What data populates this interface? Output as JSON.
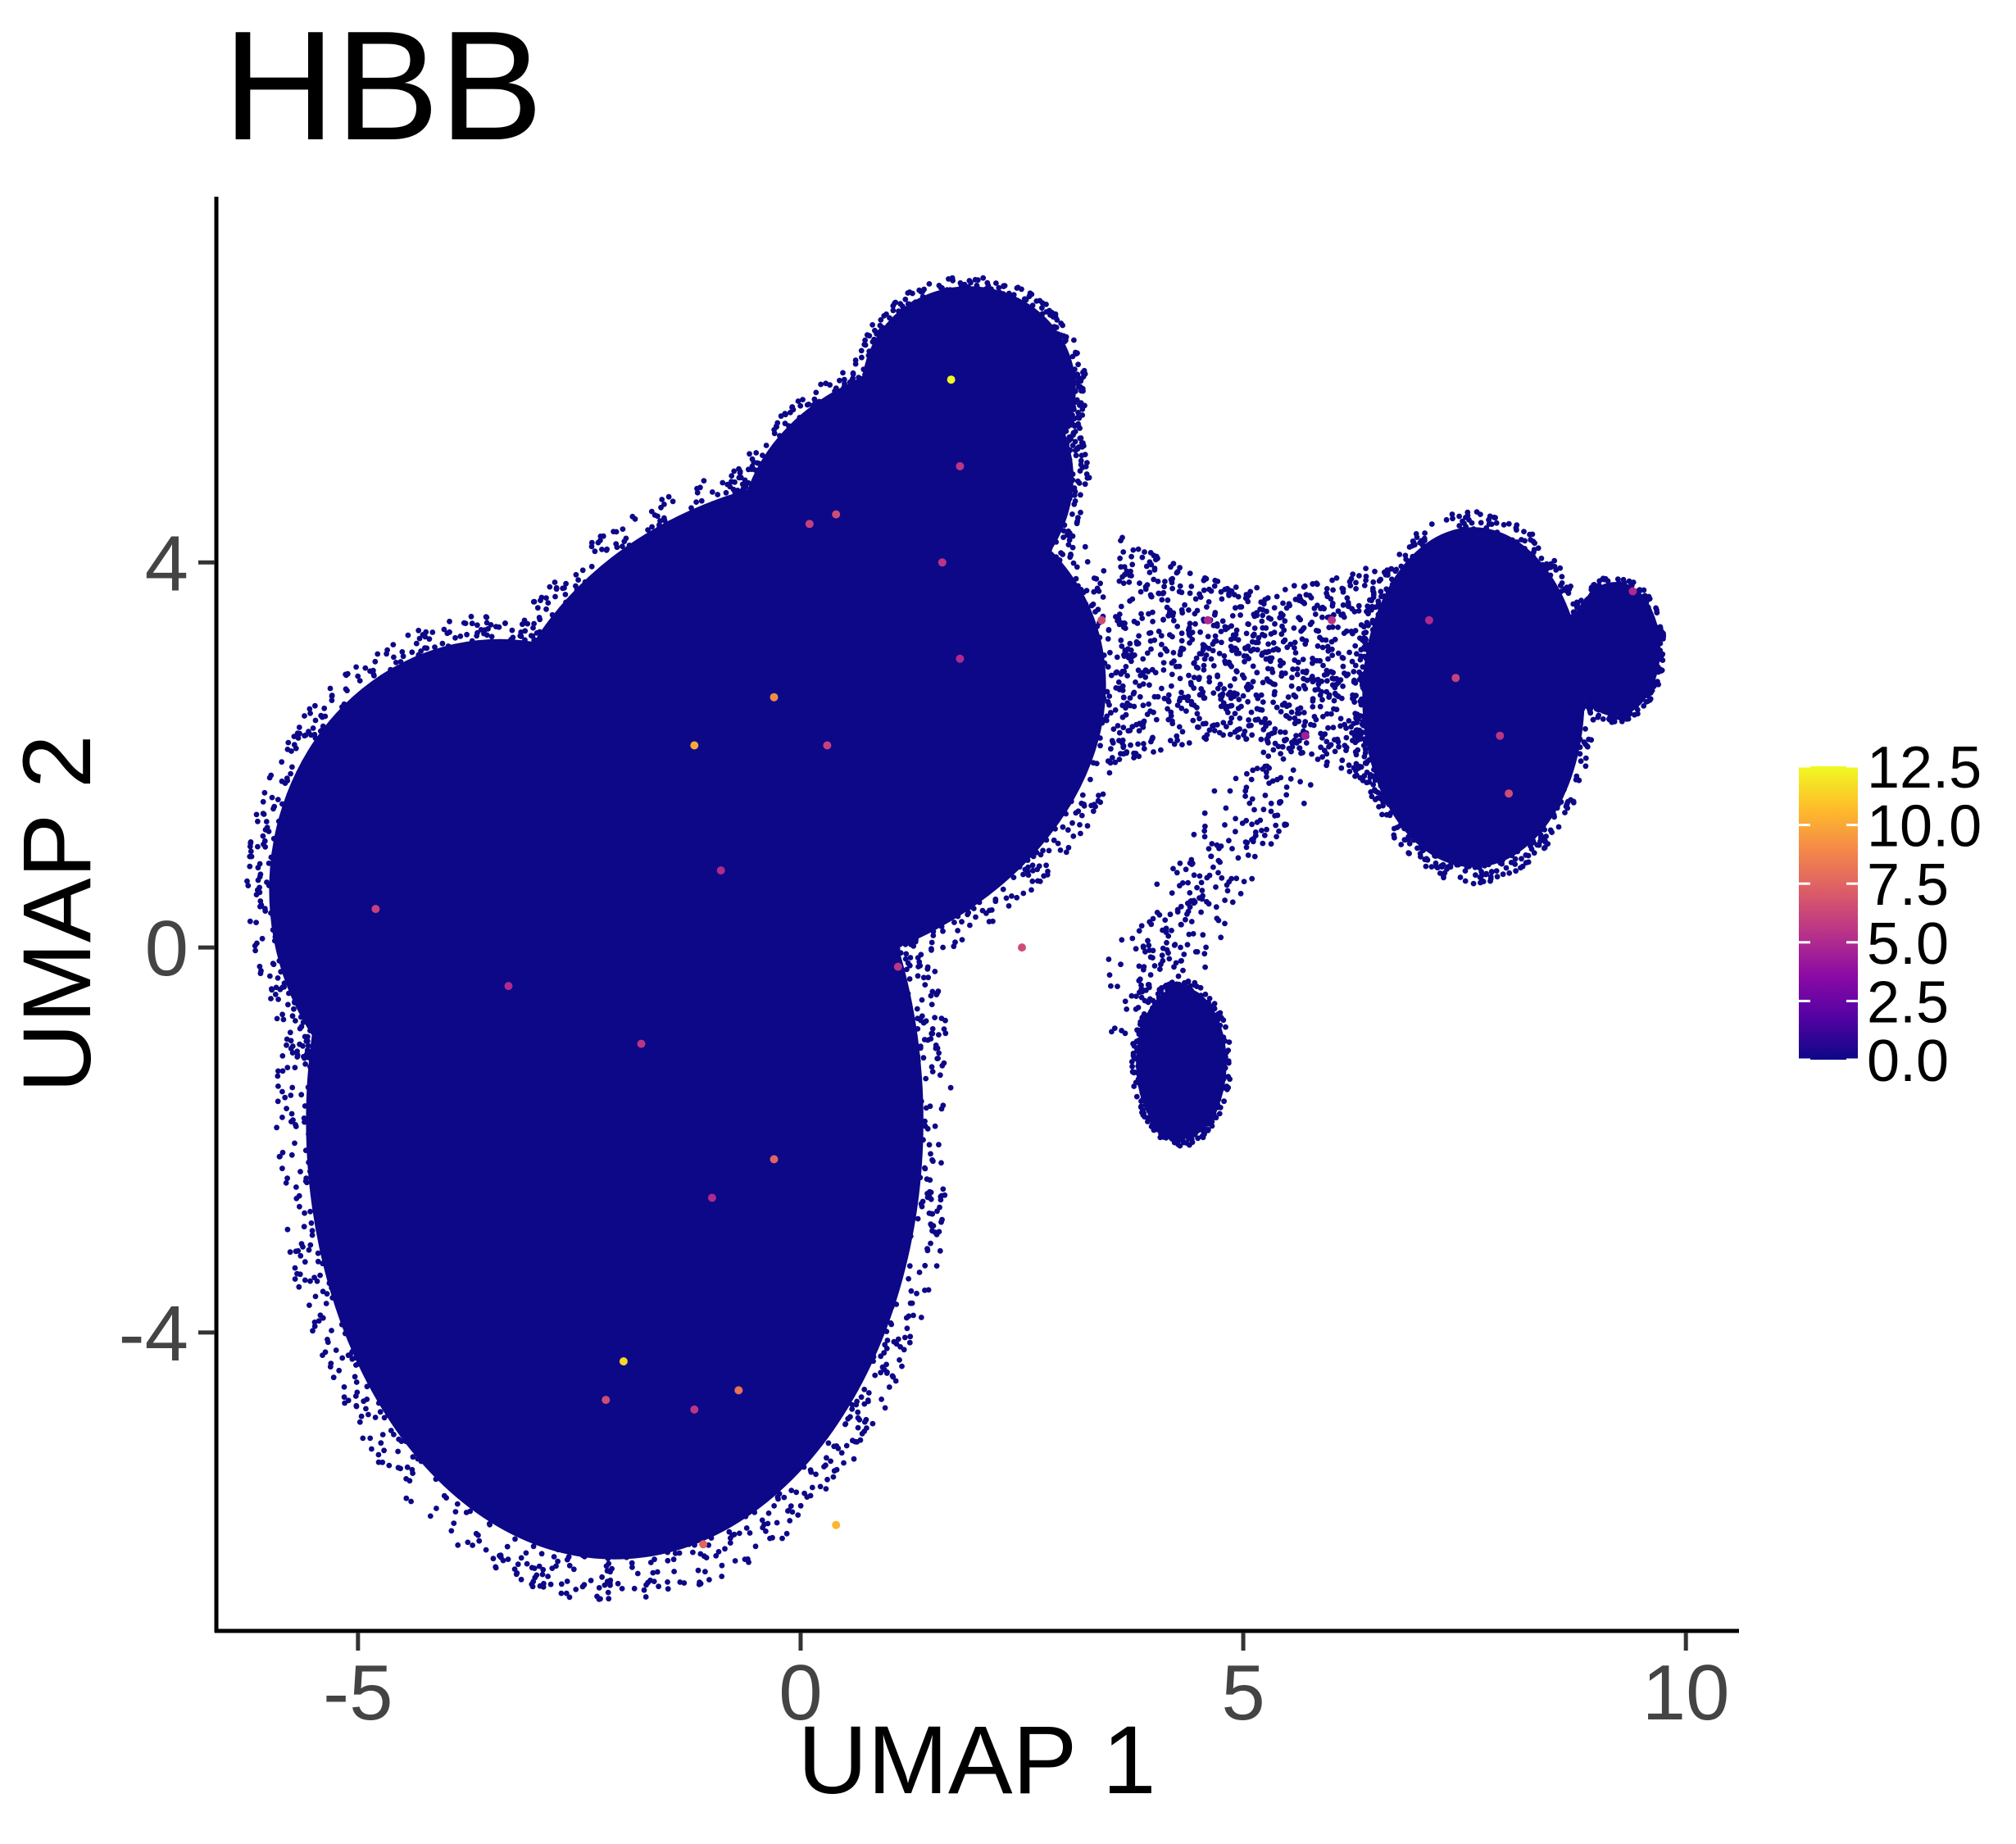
{
  "chart_data": {
    "type": "scatter",
    "title": "HBB",
    "xlabel": "UMAP 1",
    "ylabel": "UMAP 2",
    "xlim": [
      -6.6,
      10.6
    ],
    "ylim": [
      -7.1,
      7.8
    ],
    "x_ticks": [
      -5,
      0,
      5,
      10
    ],
    "x_tick_labels": [
      "-5",
      "0",
      "5",
      "10"
    ],
    "y_ticks": [
      -4,
      0,
      4
    ],
    "y_tick_labels": [
      "-4",
      "0",
      "4"
    ],
    "grid": false,
    "legend": {
      "placement": "right",
      "kind": "colorbar",
      "min": 0.0,
      "max": 12.5,
      "ticks": [
        0.0,
        2.5,
        5.0,
        7.5,
        10.0,
        12.5
      ],
      "tick_labels": [
        "0.0",
        "2.5",
        "5.0",
        "7.5",
        "10.0",
        "12.5"
      ],
      "gradient": [
        "#0d0887",
        "#5302a3",
        "#8b0aa5",
        "#b83289",
        "#db5c68",
        "#f48849",
        "#febd2a",
        "#f0f921"
      ]
    },
    "point_color_low": "#0d0887",
    "clusters": [
      {
        "name": "main-lower",
        "shape": "ellipse",
        "cx": -2.1,
        "cy": -1.8,
        "rx": 3.75,
        "ry": 4.9,
        "rotation_deg": 0
      },
      {
        "name": "main-left",
        "shape": "ellipse",
        "cx": -3.4,
        "cy": 0.6,
        "rx": 2.8,
        "ry": 2.8,
        "rotation_deg": 0
      },
      {
        "name": "main-upper",
        "shape": "ellipse",
        "cx": 0.0,
        "cy": 2.3,
        "rx": 3.8,
        "ry": 2.7,
        "rotation_deg": 20
      },
      {
        "name": "top-lobe",
        "shape": "ellipse",
        "cx": 1.9,
        "cy": 5.8,
        "rx": 1.3,
        "ry": 1.15,
        "rotation_deg": 0
      },
      {
        "name": "upper-neck",
        "shape": "ellipse",
        "cx": 1.2,
        "cy": 4.6,
        "rx": 2.1,
        "ry": 1.5,
        "rotation_deg": 25
      },
      {
        "name": "right-cluster",
        "shape": "ellipse",
        "cx": 7.6,
        "cy": 2.6,
        "rx": 1.35,
        "ry": 1.9,
        "rotation_deg": 0
      },
      {
        "name": "right-tip",
        "shape": "ellipse",
        "cx": 9.2,
        "cy": 3.1,
        "rx": 0.55,
        "ry": 0.75,
        "rotation_deg": 0
      },
      {
        "name": "small-cluster",
        "shape": "ellipse",
        "cx": 4.3,
        "cy": -1.2,
        "rx": 0.55,
        "ry": 0.85,
        "rotation_deg": 0
      },
      {
        "name": "bridge",
        "shape": "scatter-band",
        "x_range": [
          3.6,
          6.5
        ],
        "y_range": [
          1.8,
          4.4
        ]
      }
    ],
    "highlighted_points": [
      {
        "x": 1.7,
        "y": 5.9,
        "value": 12.5
      },
      {
        "x": -1.2,
        "y": 2.1,
        "value": 10.0
      },
      {
        "x": -0.3,
        "y": 2.6,
        "value": 9.0
      },
      {
        "x": -2.0,
        "y": -4.3,
        "value": 11.5
      },
      {
        "x": 0.4,
        "y": -6.0,
        "value": 10.5
      },
      {
        "x": 0.4,
        "y": 4.5,
        "value": 6.5
      },
      {
        "x": 1.8,
        "y": 5.0,
        "value": 5.5
      },
      {
        "x": 0.1,
        "y": 4.4,
        "value": 6.0
      },
      {
        "x": 1.6,
        "y": 4.0,
        "value": 5.5
      },
      {
        "x": 3.4,
        "y": 3.4,
        "value": 6.5
      },
      {
        "x": 1.8,
        "y": 3.0,
        "value": 5.0
      },
      {
        "x": 0.3,
        "y": 2.1,
        "value": 6.0
      },
      {
        "x": 1.1,
        "y": -0.2,
        "value": 5.5
      },
      {
        "x": 2.5,
        "y": 0.0,
        "value": 6.5
      },
      {
        "x": -0.9,
        "y": 0.8,
        "value": 5.0
      },
      {
        "x": -4.8,
        "y": 0.4,
        "value": 6.0
      },
      {
        "x": -3.3,
        "y": -0.4,
        "value": 5.0
      },
      {
        "x": -1.8,
        "y": -1.0,
        "value": 5.5
      },
      {
        "x": -0.3,
        "y": -2.2,
        "value": 7.5
      },
      {
        "x": -1.0,
        "y": -2.6,
        "value": 5.0
      },
      {
        "x": -1.2,
        "y": -4.8,
        "value": 5.5
      },
      {
        "x": -0.7,
        "y": -4.6,
        "value": 8.0
      },
      {
        "x": -2.2,
        "y": -4.7,
        "value": 6.5
      },
      {
        "x": -1.1,
        "y": -6.2,
        "value": 7.5
      },
      {
        "x": 7.4,
        "y": 2.8,
        "value": 6.0
      },
      {
        "x": 7.1,
        "y": 3.4,
        "value": 5.0
      },
      {
        "x": 7.9,
        "y": 2.2,
        "value": 5.5
      },
      {
        "x": 8.0,
        "y": 1.6,
        "value": 6.5
      },
      {
        "x": 9.4,
        "y": 3.7,
        "value": 5.0
      },
      {
        "x": 6.0,
        "y": 3.4,
        "value": 5.5
      },
      {
        "x": 4.6,
        "y": 3.4,
        "value": 5.0
      },
      {
        "x": 5.7,
        "y": 2.2,
        "value": 4.5
      }
    ]
  }
}
